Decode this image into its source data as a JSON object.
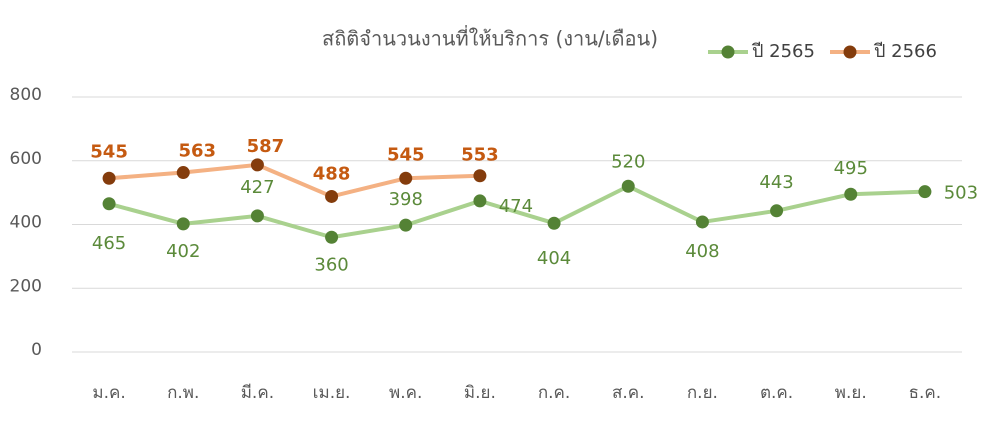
{
  "chart_data": {
    "type": "line",
    "title": "สถิติจำนวนงานที่ให้บริการ (งาน/เดือน)",
    "categories": [
      "ม.ค.",
      "ก.พ.",
      "มี.ค.",
      "เม.ย.",
      "พ.ค.",
      "มิ.ย.",
      "ก.ค.",
      "ส.ค.",
      "ก.ย.",
      "ต.ค.",
      "พ.ย.",
      "ธ.ค."
    ],
    "series": [
      {
        "name": "ปี 2565",
        "color": "#a9d18e",
        "marker_color": "#548235",
        "label_color": "#5b8a3a",
        "values": [
          465,
          402,
          427,
          360,
          398,
          474,
          404,
          520,
          408,
          443,
          495,
          503
        ]
      },
      {
        "name": "ปี 2566",
        "color": "#f4b183",
        "marker_color": "#843c0c",
        "label_color": "#c55a11",
        "values": [
          545,
          563,
          587,
          488,
          545,
          553,
          null,
          null,
          null,
          null,
          null,
          null
        ]
      }
    ],
    "ylim": [
      0,
      800
    ],
    "yticks": [
      0,
      200,
      400,
      600,
      800
    ],
    "grid": true,
    "legend": "top-right"
  }
}
